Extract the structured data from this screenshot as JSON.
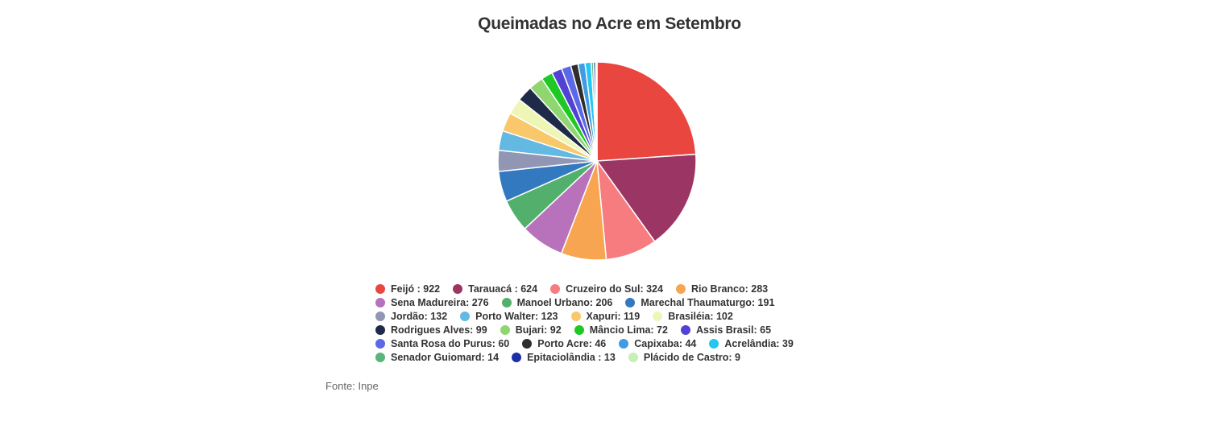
{
  "source": "Fonte: Inpe",
  "chart_data": {
    "type": "pie",
    "title": "Queimadas no Acre em Setembro",
    "series": [
      {
        "label": "Feijó : 922",
        "name": "Feijó",
        "value": 922,
        "color": "#e8463e"
      },
      {
        "label": "Tarauacá : 624",
        "name": "Tarauacá",
        "value": 624,
        "color": "#9b3564"
      },
      {
        "label": "Cruzeiro do Sul: 324",
        "name": "Cruzeiro do Sul",
        "value": 324,
        "color": "#f67c80"
      },
      {
        "label": "Rio Branco: 283",
        "name": "Rio Branco",
        "value": 283,
        "color": "#f7a551"
      },
      {
        "label": "Sena Madureira: 276",
        "name": "Sena Madureira",
        "value": 276,
        "color": "#b872bb"
      },
      {
        "label": "Manoel Urbano: 206",
        "name": "Manoel Urbano",
        "value": 206,
        "color": "#53b06c"
      },
      {
        "label": "Marechal Thaumaturgo: 191",
        "name": "Marechal Thaumaturgo",
        "value": 191,
        "color": "#3279c0"
      },
      {
        "label": "Jordão: 132",
        "name": "Jordão",
        "value": 132,
        "color": "#9096b4"
      },
      {
        "label": "Porto Walter: 123",
        "name": "Porto Walter",
        "value": 123,
        "color": "#63b9e2"
      },
      {
        "label": "Xapuri: 119",
        "name": "Xapuri",
        "value": 119,
        "color": "#f8c86a"
      },
      {
        "label": "Brasiléia: 102",
        "name": "Brasiléia",
        "value": 102,
        "color": "#eef6b6"
      },
      {
        "label": "Rodrigues Alves: 99",
        "name": "Rodrigues Alves",
        "value": 99,
        "color": "#1e2a47"
      },
      {
        "label": "Bujari: 92",
        "name": "Bujari",
        "value": 92,
        "color": "#8fd671"
      },
      {
        "label": "Mâncio Lima: 72",
        "name": "Mâncio Lima",
        "value": 72,
        "color": "#1ec924"
      },
      {
        "label": "Assis Brasil: 65",
        "name": "Assis Brasil",
        "value": 65,
        "color": "#5142d4"
      },
      {
        "label": "Santa Rosa do Purus: 60",
        "name": "Santa Rosa do Purus",
        "value": 60,
        "color": "#5b68e7"
      },
      {
        "label": "Porto Acre: 46",
        "name": "Porto Acre",
        "value": 46,
        "color": "#2e2e2e"
      },
      {
        "label": "Capixaba: 44",
        "name": "Capixaba",
        "value": 44,
        "color": "#3f9be3"
      },
      {
        "label": "Acrelândia: 39",
        "name": "Acrelândia",
        "value": 39,
        "color": "#25c6ef"
      },
      {
        "label": "Senador Guiomard: 14",
        "name": "Senador Guiomard",
        "value": 14,
        "color": "#5bb47a"
      },
      {
        "label": "Epitaciolândia : 13",
        "name": "Epitaciolândia",
        "value": 13,
        "color": "#1c2fa8"
      },
      {
        "label": "Plácido de Castro: 9",
        "name": "Plácido de Castro",
        "value": 9,
        "color": "#c8efb4"
      }
    ],
    "legend": "bottom"
  }
}
